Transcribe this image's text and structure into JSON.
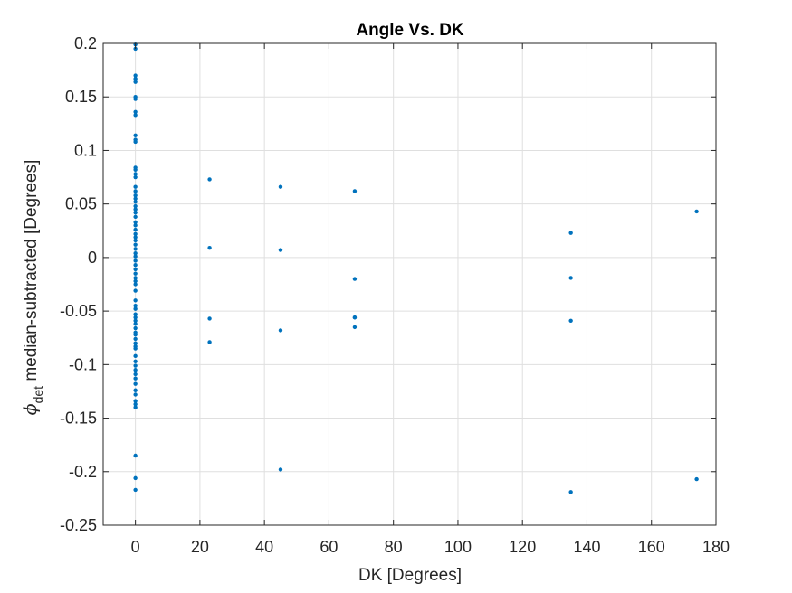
{
  "chart_data": {
    "type": "scatter",
    "title": "Angle Vs. DK",
    "xlabel": "DK [Degrees]",
    "ylabel_symbol": "ϕ",
    "ylabel_subscript": "det",
    "ylabel_rest": " median-subtracted [Degrees]",
    "xlim": [
      -10,
      180
    ],
    "ylim": [
      -0.25,
      0.2
    ],
    "xticks": [
      0,
      20,
      40,
      60,
      80,
      100,
      120,
      140,
      160,
      180
    ],
    "xtick_labels": [
      "0",
      "20",
      "40",
      "60",
      "80",
      "100",
      "120",
      "140",
      "160",
      "180"
    ],
    "yticks": [
      -0.25,
      -0.2,
      -0.15,
      -0.1,
      -0.05,
      0,
      0.05,
      0.1,
      0.15,
      0.2
    ],
    "ytick_labels": [
      "-0.25",
      "-0.2",
      "-0.15",
      "-0.1",
      "-0.05",
      "0",
      "0.05",
      "0.1",
      "0.15",
      "0.2"
    ],
    "grid": true,
    "marker_color": "#0072bd",
    "series": [
      {
        "x": [
          0,
          0,
          0,
          0,
          0,
          0,
          0,
          0,
          0,
          0,
          0,
          0,
          0,
          0,
          0,
          0,
          0,
          0,
          0,
          0,
          0,
          0,
          0,
          0,
          0,
          0,
          0,
          0,
          0,
          0,
          0,
          0,
          0,
          0,
          0,
          0,
          0,
          0,
          0,
          0,
          0,
          0,
          0,
          0,
          0,
          0,
          0,
          0,
          0,
          0,
          0,
          0,
          0,
          0,
          0,
          0,
          0,
          0,
          0,
          0,
          0,
          0,
          0,
          0,
          0,
          0,
          0,
          0,
          0,
          0,
          0,
          0,
          23,
          23,
          23,
          23,
          45,
          45,
          45,
          45,
          68,
          68,
          68,
          68,
          68,
          135,
          135,
          135,
          135,
          174,
          174
        ],
        "y": [
          0.199,
          0.195,
          0.17,
          0.167,
          0.164,
          0.15,
          0.148,
          0.136,
          0.133,
          0.114,
          0.11,
          0.108,
          0.084,
          0.082,
          0.078,
          0.075,
          0.066,
          0.062,
          0.058,
          0.055,
          0.052,
          0.048,
          0.045,
          0.042,
          0.038,
          0.033,
          0.03,
          0.026,
          0.022,
          0.019,
          0.016,
          0.012,
          0.008,
          0.004,
          0.001,
          -0.003,
          -0.007,
          -0.011,
          -0.015,
          -0.019,
          -0.022,
          -0.025,
          -0.031,
          -0.04,
          -0.045,
          -0.048,
          -0.053,
          -0.056,
          -0.059,
          -0.062,
          -0.066,
          -0.072,
          -0.076,
          -0.08,
          -0.083,
          -0.092,
          -0.097,
          -0.101,
          -0.105,
          -0.109,
          -0.113,
          -0.118,
          -0.124,
          -0.134,
          -0.137,
          -0.14,
          -0.185,
          -0.206,
          -0.217,
          -0.128,
          -0.085,
          -0.07,
          0.073,
          0.009,
          -0.057,
          -0.079,
          0.066,
          0.007,
          -0.068,
          -0.198,
          0.062,
          -0.02,
          -0.056,
          -0.065,
          -0.056,
          0.023,
          -0.019,
          -0.059,
          -0.219,
          0.043,
          -0.207
        ]
      }
    ]
  }
}
